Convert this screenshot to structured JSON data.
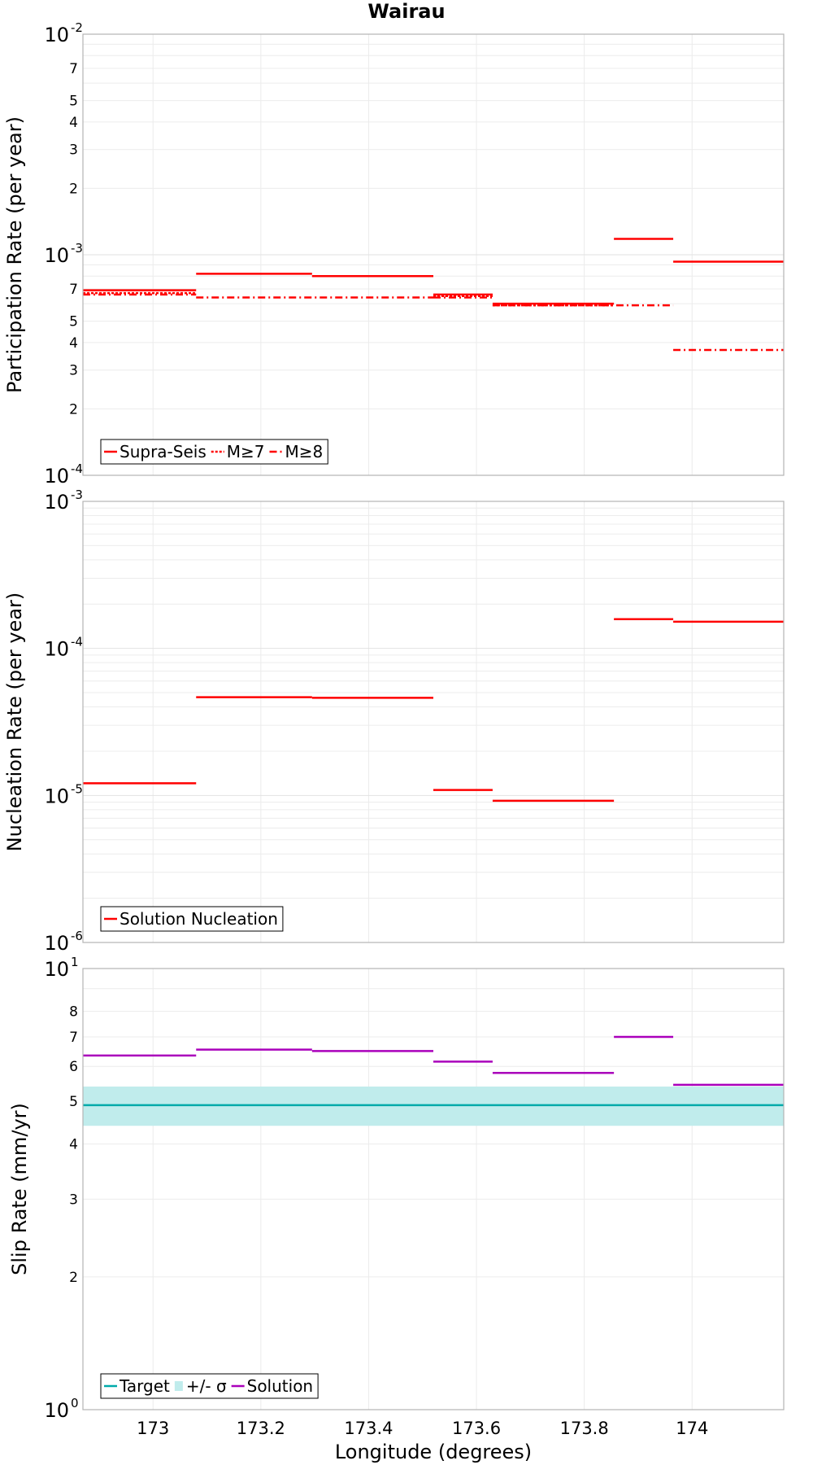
{
  "chart_data": [
    {
      "type": "line",
      "title": "Wairau",
      "ylabel": "Participation Rate (per year)",
      "xlabel": "",
      "yscale": "log",
      "ylim": [
        0.0001,
        0.01
      ],
      "xlim": [
        172.87,
        174.17
      ],
      "grid": true,
      "legend_position": "bottom-left",
      "tick_labels": {
        "major": [
          {
            "value": 0.01,
            "base": "10",
            "exp": "-2"
          },
          {
            "value": 0.001,
            "base": "10",
            "exp": "-3"
          },
          {
            "value": 0.0001,
            "base": "10",
            "exp": "-4"
          }
        ],
        "minor": [
          {
            "value": 0.007,
            "label": "7"
          },
          {
            "value": 0.005,
            "label": "5"
          },
          {
            "value": 0.004,
            "label": "4"
          },
          {
            "value": 0.003,
            "label": "3"
          },
          {
            "value": 0.002,
            "label": "2"
          },
          {
            "value": 0.0007,
            "label": "7"
          },
          {
            "value": 0.0005,
            "label": "5"
          },
          {
            "value": 0.0004,
            "label": "4"
          },
          {
            "value": 0.0003,
            "label": "3"
          },
          {
            "value": 0.0002,
            "label": "2"
          }
        ]
      },
      "series": [
        {
          "name": "Supra-Seis",
          "color": "#ff0000",
          "style": "solid",
          "segments": [
            [
              172.87,
              173.08,
              0.00069
            ],
            [
              173.08,
              173.295,
              0.00082
            ],
            [
              173.295,
              173.52,
              0.0008
            ],
            [
              173.52,
              173.63,
              0.00066
            ],
            [
              173.63,
              173.855,
              0.0006
            ],
            [
              173.855,
              173.965,
              0.00118
            ],
            [
              173.965,
              174.17,
              0.00093
            ]
          ]
        },
        {
          "name": "M≥7",
          "color": "#ff0000",
          "style": "dotted",
          "segments": [
            [
              172.87,
              173.08,
              0.00067
            ],
            [
              173.52,
              173.63,
              0.00065
            ],
            [
              173.63,
              173.855,
              0.00059
            ]
          ]
        },
        {
          "name": "M≥8",
          "color": "#ff0000",
          "style": "dashdot",
          "segments": [
            [
              172.87,
              173.08,
              0.00066
            ],
            [
              173.08,
              173.52,
              0.00064
            ],
            [
              173.52,
              173.63,
              0.00064
            ],
            [
              173.63,
              173.965,
              0.00059
            ],
            [
              173.965,
              174.17,
              0.00037
            ]
          ]
        }
      ]
    },
    {
      "type": "line",
      "title": "",
      "ylabel": "Nucleation Rate (per year)",
      "xlabel": "",
      "yscale": "log",
      "ylim": [
        1e-06,
        0.001
      ],
      "xlim": [
        172.87,
        174.17
      ],
      "grid": true,
      "legend_position": "bottom-left",
      "tick_labels": {
        "major": [
          {
            "value": 0.001,
            "base": "10",
            "exp": "-3"
          },
          {
            "value": 0.0001,
            "base": "10",
            "exp": "-4"
          },
          {
            "value": 1e-05,
            "base": "10",
            "exp": "-5"
          },
          {
            "value": 1e-06,
            "base": "10",
            "exp": "-6"
          }
        ],
        "minor": []
      },
      "series": [
        {
          "name": "Solution Nucleation",
          "color": "#ff0000",
          "style": "solid",
          "segments": [
            [
              172.87,
              173.08,
              1.21e-05
            ],
            [
              173.08,
              173.295,
              4.66e-05
            ],
            [
              173.295,
              173.52,
              4.61e-05
            ],
            [
              173.52,
              173.63,
              1.09e-05
            ],
            [
              173.63,
              173.855,
              9.2e-06
            ],
            [
              173.855,
              173.965,
              0.000158
            ],
            [
              173.965,
              174.17,
              0.000152
            ]
          ]
        }
      ]
    },
    {
      "type": "line",
      "title": "",
      "ylabel": "Slip Rate (mm/yr)",
      "xlabel": "Longitude (degrees)",
      "yscale": "log",
      "ylim": [
        1,
        10
      ],
      "xlim": [
        172.87,
        174.17
      ],
      "xticks": [
        {
          "value": 173,
          "label": "173"
        },
        {
          "value": 173.2,
          "label": "173.2"
        },
        {
          "value": 173.4,
          "label": "173.4"
        },
        {
          "value": 173.6,
          "label": "173.6"
        },
        {
          "value": 173.8,
          "label": "173.8"
        },
        {
          "value": 174,
          "label": "174"
        }
      ],
      "grid": true,
      "legend_position": "bottom-left",
      "tick_labels": {
        "major": [
          {
            "value": 10,
            "base": "10",
            "exp": "1"
          },
          {
            "value": 1,
            "base": "10",
            "exp": "0"
          }
        ],
        "minor": [
          {
            "value": 8,
            "label": "8"
          },
          {
            "value": 7,
            "label": "7"
          },
          {
            "value": 6,
            "label": "6"
          },
          {
            "value": 5,
            "label": "5"
          },
          {
            "value": 4,
            "label": "4"
          },
          {
            "value": 3,
            "label": "3"
          },
          {
            "value": 2,
            "label": "2"
          }
        ]
      },
      "band": {
        "name": "+/- σ",
        "color": "#c0ecec",
        "low": 4.4,
        "high": 5.4
      },
      "series": [
        {
          "name": "Target",
          "color": "#00aaaa",
          "style": "solid",
          "segments": [
            [
              172.87,
              174.17,
              4.9
            ]
          ]
        },
        {
          "name": "Solution",
          "color": "#aa00bb",
          "style": "solid",
          "segments": [
            [
              172.87,
              173.08,
              6.35
            ],
            [
              173.08,
              173.295,
              6.55
            ],
            [
              173.295,
              173.52,
              6.5
            ],
            [
              173.52,
              173.63,
              6.15
            ],
            [
              173.63,
              173.855,
              5.8
            ],
            [
              173.855,
              173.965,
              7.0
            ],
            [
              173.965,
              174.17,
              5.45
            ]
          ]
        }
      ]
    }
  ]
}
